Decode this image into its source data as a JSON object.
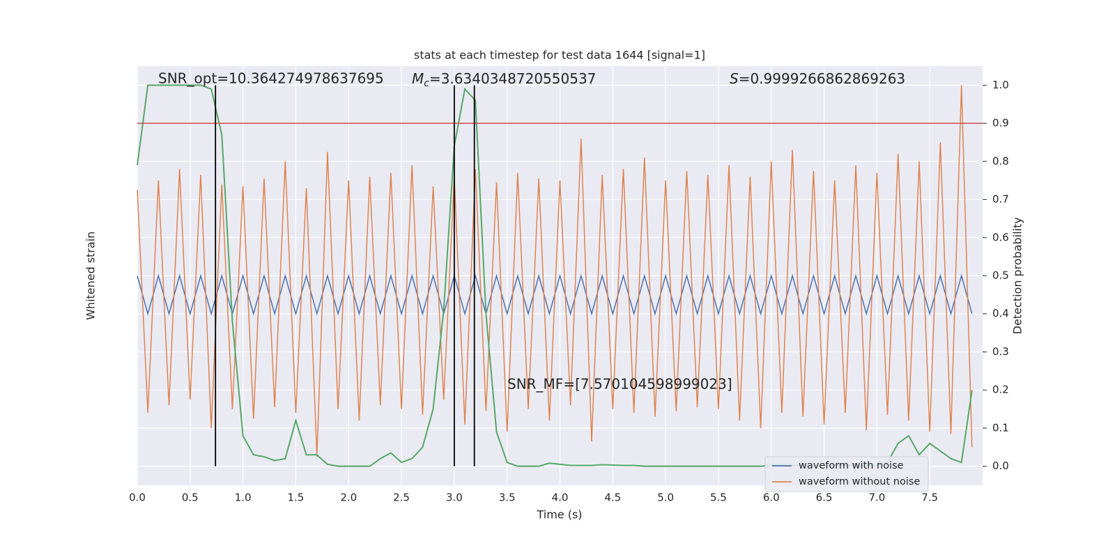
{
  "chart_data": {
    "type": "line",
    "title": "stats at each timestep for test data 1644 [signal=1]",
    "x_label": "Time (s)",
    "y_label": "Whitened strain",
    "y2_label": "Detection probability",
    "xlim": [
      0,
      8
    ],
    "xticks": [
      {
        "value": 0,
        "label": "0.0"
      },
      {
        "value": 0.5,
        "label": "0.5"
      },
      {
        "value": 1,
        "label": "1.0"
      },
      {
        "value": 1.5,
        "label": "1.5"
      },
      {
        "value": 2,
        "label": "2.0"
      },
      {
        "value": 2.5,
        "label": "2.5"
      },
      {
        "value": 3,
        "label": "3.0"
      },
      {
        "value": 3.5,
        "label": "3.5"
      },
      {
        "value": 4,
        "label": "4.0"
      },
      {
        "value": 4.5,
        "label": "4.5"
      },
      {
        "value": 5,
        "label": "5.0"
      },
      {
        "value": 5.5,
        "label": "5.5"
      },
      {
        "value": 6,
        "label": "6.0"
      },
      {
        "value": 6.5,
        "label": "6.5"
      },
      {
        "value": 7,
        "label": "7.0"
      },
      {
        "value": 7.5,
        "label": "7.5"
      }
    ],
    "ylim": [
      -1,
      1.2
    ],
    "y2lim": [
      -0.05,
      1.05
    ],
    "y2ticks": [
      {
        "value": 0,
        "label": "0.0"
      },
      0.1,
      0.2,
      0.3,
      0.4,
      0.5,
      0.6,
      0.7,
      0.8,
      0.9,
      {
        "value": 1,
        "label": "1.0"
      }
    ],
    "grid": true,
    "legend": "lower right",
    "x": [
      0,
      0.1,
      0.2,
      0.3,
      0.4,
      0.5,
      0.6,
      0.7,
      0.8,
      0.9,
      1.0,
      1.1,
      1.2,
      1.3,
      1.4,
      1.5,
      1.6,
      1.7,
      1.8,
      1.9,
      2.0,
      2.1,
      2.2,
      2.3,
      2.4,
      2.5,
      2.6,
      2.7,
      2.8,
      2.9,
      3.0,
      3.1,
      3.2,
      3.3,
      3.4,
      3.5,
      3.6,
      3.7,
      3.8,
      3.9,
      4.0,
      4.1,
      4.2,
      4.3,
      4.4,
      4.5,
      4.6,
      4.7,
      4.8,
      4.9,
      5.0,
      5.1,
      5.2,
      5.3,
      5.4,
      5.5,
      5.6,
      5.7,
      5.8,
      5.9,
      6.0,
      6.1,
      6.2,
      6.3,
      6.4,
      6.5,
      6.6,
      6.7,
      6.8,
      6.9,
      7.0,
      7.1,
      7.2,
      7.3,
      7.4,
      7.5,
      7.6,
      7.7,
      7.8,
      7.9
    ],
    "series": [
      {
        "name": "waveform with noise",
        "color": "#4c72b0",
        "axis": "y",
        "values": [
          0.1,
          -0.1,
          0.1,
          -0.1,
          0.1,
          -0.1,
          0.1,
          -0.1,
          0.1,
          -0.1,
          0.1,
          -0.1,
          0.1,
          -0.1,
          0.1,
          -0.1,
          0.1,
          -0.1,
          0.1,
          -0.1,
          0.1,
          -0.1,
          0.1,
          -0.1,
          0.1,
          -0.1,
          0.1,
          -0.1,
          0.1,
          -0.1,
          0.1,
          -0.1,
          0.1,
          -0.1,
          0.1,
          -0.1,
          0.1,
          -0.1,
          0.1,
          -0.1,
          0.1,
          -0.1,
          0.1,
          -0.1,
          0.1,
          -0.1,
          0.1,
          -0.1,
          0.1,
          -0.1,
          0.1,
          -0.1,
          0.1,
          -0.1,
          0.1,
          -0.1,
          0.1,
          -0.1,
          0.1,
          -0.1,
          0.1,
          -0.1,
          0.1,
          -0.1,
          0.1,
          -0.1,
          0.1,
          -0.1,
          0.1,
          -0.1,
          0.1,
          -0.1,
          0.1,
          -0.1,
          0.1,
          -0.1,
          0.1,
          -0.1,
          0.1,
          -0.1
        ]
      },
      {
        "name": "waveform without noise",
        "color": "#dd8452",
        "axis": "y",
        "values": [
          0.55,
          -0.62,
          0.6,
          -0.58,
          0.66,
          -0.55,
          0.63,
          -0.7,
          0.58,
          -0.6,
          0.57,
          -0.65,
          0.61,
          -0.59,
          0.7,
          -0.62,
          0.56,
          -0.85,
          0.75,
          -0.6,
          0.6,
          -0.66,
          0.62,
          -0.58,
          0.64,
          -0.6,
          0.68,
          -0.63,
          0.57,
          -0.55,
          0.62,
          -0.68,
          0.66,
          -0.61,
          0.59,
          -0.72,
          0.64,
          -0.6,
          0.61,
          -0.66,
          0.6,
          -0.58,
          0.82,
          -0.77,
          0.63,
          -0.6,
          0.66,
          -0.62,
          0.72,
          -0.64,
          0.6,
          -0.61,
          0.65,
          -0.59,
          0.63,
          -0.6,
          0.68,
          -0.66,
          0.62,
          -0.7,
          0.7,
          -0.62,
          0.76,
          -0.64,
          0.65,
          -0.68,
          0.6,
          -0.62,
          0.68,
          -0.71,
          0.64,
          -0.63,
          0.74,
          -0.66,
          0.7,
          -0.72,
          0.8,
          -0.73,
          1.1,
          -0.8
        ]
      },
      {
        "color": "#55a868",
        "axis": "y2",
        "values": [
          0.79,
          1.0,
          1.0,
          1.0,
          1.0,
          1.0,
          1.0,
          0.99,
          0.87,
          0.38,
          0.08,
          0.03,
          0.025,
          0.015,
          0.02,
          0.12,
          0.03,
          0.03,
          0.005,
          0.0,
          0.0,
          0.0,
          0.0,
          0.02,
          0.035,
          0.01,
          0.02,
          0.05,
          0.15,
          0.41,
          0.84,
          0.99,
          0.96,
          0.4,
          0.09,
          0.01,
          0.0,
          0.0,
          0.0,
          0.008,
          0.005,
          0.002,
          0.002,
          0.002,
          0.004,
          0.003,
          0.002,
          0.002,
          0.0,
          0.0,
          0.0,
          0.0,
          0.0,
          0.0,
          0.0,
          0.0,
          0.0,
          0.0,
          0.0,
          0.0,
          0.003,
          0.003,
          0.002,
          0.002,
          0.002,
          0.002,
          0.002,
          0.002,
          0.002,
          0.002,
          0.002,
          0.01,
          0.06,
          0.08,
          0.03,
          0.06,
          0.04,
          0.02,
          0.01,
          0.2
        ]
      }
    ],
    "threshold": {
      "value": 0.9,
      "color": "#c44e52"
    },
    "vlines": {
      "x": [
        0.74,
        3.0,
        3.19
      ],
      "ymin": 0,
      "ymax": 1,
      "color": "#000000"
    },
    "annotations": {
      "snr_opt": "SNR_opt=10.364274978637695",
      "mc": {
        "symbol": "M",
        "subscript": "c",
        "text": "=3.6340348720550537"
      },
      "s": {
        "symbol": "S",
        "text": "=0.9999266862869263"
      },
      "snr_mf": "SNR_MF=[7.570104598999023]"
    }
  }
}
